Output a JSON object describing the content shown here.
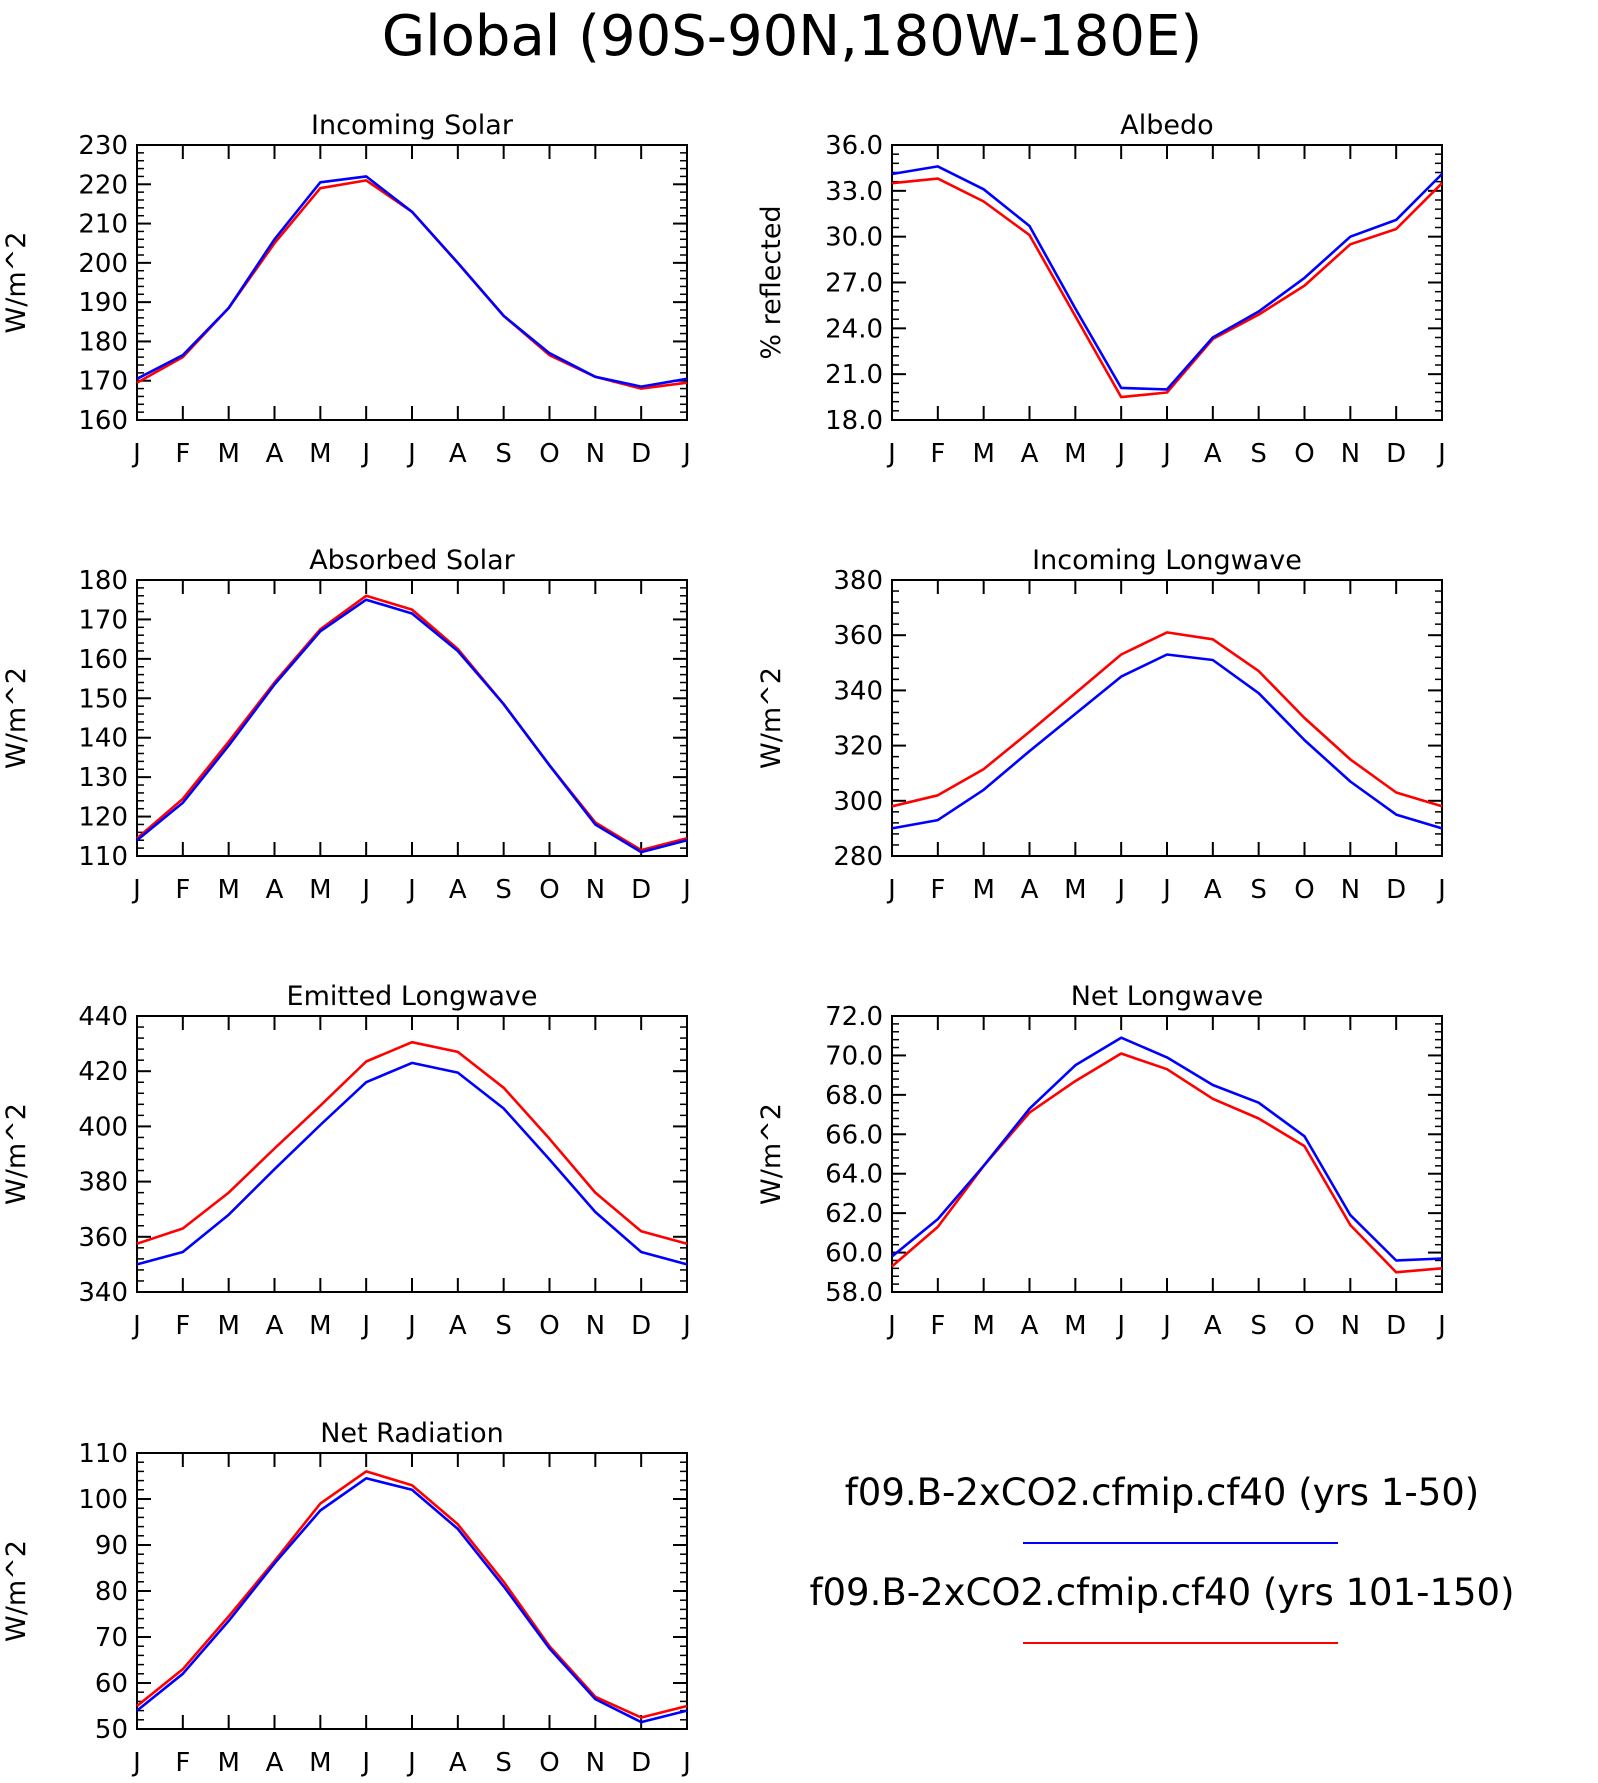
{
  "title": "Global (90S-90N,180W-180E)",
  "colors": {
    "series1": "#0000ff",
    "series2": "#ff0000",
    "axis": "#000000"
  },
  "legend": [
    {
      "label": "f09.B-2xCO2.cfmip.cf40 (yrs 1-50)",
      "color": "#0000ff"
    },
    {
      "label": "f09.B-2xCO2.cfmip.cf40 (yrs 101-150)",
      "color": "#ff0000"
    }
  ],
  "chart_data": [
    {
      "type": "line",
      "title": "Incoming Solar",
      "ylabel": "W/m^2",
      "categories": [
        "J",
        "F",
        "M",
        "A",
        "M",
        "J",
        "J",
        "A",
        "S",
        "O",
        "N",
        "D",
        "J"
      ],
      "ylim": [
        160,
        230
      ],
      "yticks": [
        "160",
        "170",
        "180",
        "190",
        "200",
        "210",
        "220",
        "230"
      ],
      "series": [
        {
          "values": [
            170.5,
            176.5,
            188.5,
            206,
            220.5,
            222,
            213,
            200,
            186.5,
            177,
            171,
            168.5,
            170.5
          ]
        },
        {
          "values": [
            169.5,
            176,
            188.5,
            205,
            219,
            221,
            213,
            200,
            186.5,
            176.5,
            171,
            168,
            169.5
          ]
        }
      ]
    },
    {
      "type": "line",
      "title": "Albedo",
      "ylabel": "% reflected",
      "categories": [
        "J",
        "F",
        "M",
        "A",
        "M",
        "J",
        "J",
        "A",
        "S",
        "O",
        "N",
        "D",
        "J"
      ],
      "ylim": [
        18,
        36
      ],
      "yticks": [
        "18.0",
        "21.0",
        "24.0",
        "27.0",
        "30.0",
        "33.0",
        "36.0"
      ],
      "series": [
        {
          "values": [
            34.1,
            34.6,
            33.1,
            30.7,
            25.3,
            20.1,
            20.0,
            23.4,
            25.1,
            27.3,
            30.0,
            31.1,
            34.1
          ]
        },
        {
          "values": [
            33.5,
            33.8,
            32.3,
            30.1,
            24.8,
            19.5,
            19.8,
            23.3,
            24.9,
            26.8,
            29.5,
            30.5,
            33.5
          ]
        }
      ]
    },
    {
      "type": "line",
      "title": "Absorbed Solar",
      "ylabel": "W/m^2",
      "categories": [
        "J",
        "F",
        "M",
        "A",
        "M",
        "J",
        "J",
        "A",
        "S",
        "O",
        "N",
        "D",
        "J"
      ],
      "ylim": [
        110,
        180
      ],
      "yticks": [
        "110",
        "120",
        "130",
        "140",
        "150",
        "160",
        "170",
        "180"
      ],
      "series": [
        {
          "values": [
            114,
            123.5,
            138,
            153.5,
            167,
            175,
            171.5,
            162,
            148.5,
            133,
            118,
            111,
            114
          ]
        },
        {
          "values": [
            114.5,
            124.5,
            139,
            154,
            167.5,
            176,
            172.5,
            162.5,
            148.5,
            133,
            118.5,
            111.5,
            114.5
          ]
        }
      ]
    },
    {
      "type": "line",
      "title": "Incoming Longwave",
      "ylabel": "W/m^2",
      "categories": [
        "J",
        "F",
        "M",
        "A",
        "M",
        "J",
        "J",
        "A",
        "S",
        "O",
        "N",
        "D",
        "J"
      ],
      "ylim": [
        280,
        380
      ],
      "yticks": [
        "280",
        "300",
        "320",
        "340",
        "360",
        "380"
      ],
      "series": [
        {
          "values": [
            290,
            293,
            304,
            318,
            331.5,
            345,
            353,
            351,
            339,
            322,
            307,
            295,
            290
          ]
        },
        {
          "values": [
            298,
            302,
            311.5,
            325,
            339,
            353,
            361,
            358.5,
            347,
            330,
            315,
            303,
            298
          ]
        }
      ]
    },
    {
      "type": "line",
      "title": "Emitted Longwave",
      "ylabel": "W/m^2",
      "categories": [
        "J",
        "F",
        "M",
        "A",
        "M",
        "J",
        "J",
        "A",
        "S",
        "O",
        "N",
        "D",
        "J"
      ],
      "ylim": [
        340,
        440
      ],
      "yticks": [
        "340",
        "360",
        "380",
        "400",
        "420",
        "440"
      ],
      "series": [
        {
          "values": [
            350,
            354.5,
            368,
            384.5,
            400.5,
            416,
            423,
            419.5,
            406.5,
            388,
            369,
            354.5,
            350
          ]
        },
        {
          "values": [
            357.5,
            363,
            376,
            392,
            407.5,
            423.5,
            430.5,
            427,
            414,
            395.5,
            376,
            362,
            357.5
          ]
        }
      ]
    },
    {
      "type": "line",
      "title": "Net Longwave",
      "ylabel": "W/m^2",
      "categories": [
        "J",
        "F",
        "M",
        "A",
        "M",
        "J",
        "J",
        "A",
        "S",
        "O",
        "N",
        "D",
        "J"
      ],
      "ylim": [
        58,
        72
      ],
      "yticks": [
        "58.0",
        "60.0",
        "62.0",
        "64.0",
        "66.0",
        "68.0",
        "70.0",
        "72.0"
      ],
      "series": [
        {
          "values": [
            59.8,
            61.7,
            64.4,
            67.3,
            69.5,
            70.9,
            69.9,
            68.5,
            67.6,
            65.9,
            61.9,
            59.6,
            59.7
          ]
        },
        {
          "values": [
            59.3,
            61.3,
            64.4,
            67.1,
            68.7,
            70.1,
            69.3,
            67.8,
            66.8,
            65.4,
            61.4,
            59.0,
            59.2
          ]
        }
      ]
    },
    {
      "type": "line",
      "title": "Net Radiation",
      "ylabel": "W/m^2",
      "categories": [
        "J",
        "F",
        "M",
        "A",
        "M",
        "J",
        "J",
        "A",
        "S",
        "O",
        "N",
        "D",
        "J"
      ],
      "ylim": [
        50,
        110
      ],
      "yticks": [
        "50",
        "60",
        "70",
        "80",
        "90",
        "100",
        "110"
      ],
      "series": [
        {
          "values": [
            54,
            62,
            73.5,
            86,
            97.5,
            104.5,
            102,
            93.5,
            81,
            67.5,
            56.5,
            51.5,
            54
          ]
        },
        {
          "values": [
            55,
            63,
            74.5,
            86.5,
            99,
            106,
            103,
            94.5,
            82,
            68,
            57,
            52.5,
            55
          ]
        }
      ]
    }
  ]
}
